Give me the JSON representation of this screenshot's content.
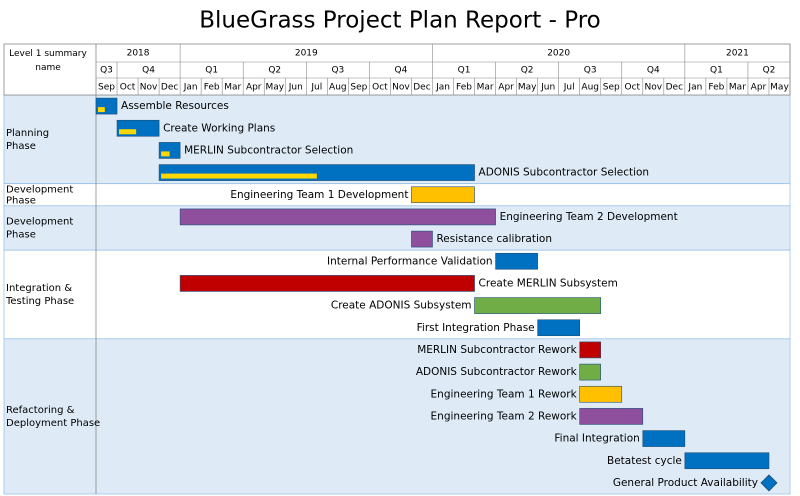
{
  "chart_data": {
    "type": "gantt",
    "title": "BlueGrass Project Plan Report - Pro",
    "row_header": "Level 1 summary name",
    "months": [
      {
        "name": "Sep",
        "quarter": "Q3",
        "year": "2018"
      },
      {
        "name": "Oct",
        "quarter": "Q4",
        "year": "2018"
      },
      {
        "name": "Nov",
        "quarter": "Q4",
        "year": "2018"
      },
      {
        "name": "Dec",
        "quarter": "Q4",
        "year": "2018"
      },
      {
        "name": "Jan",
        "quarter": "Q1",
        "year": "2019"
      },
      {
        "name": "Feb",
        "quarter": "Q1",
        "year": "2019"
      },
      {
        "name": "Mar",
        "quarter": "Q1",
        "year": "2019"
      },
      {
        "name": "Apr",
        "quarter": "Q2",
        "year": "2019"
      },
      {
        "name": "May",
        "quarter": "Q2",
        "year": "2019"
      },
      {
        "name": "Jun",
        "quarter": "Q2",
        "year": "2019"
      },
      {
        "name": "Jul",
        "quarter": "Q3",
        "year": "2019"
      },
      {
        "name": "Aug",
        "quarter": "Q3",
        "year": "2019"
      },
      {
        "name": "Sep",
        "quarter": "Q3",
        "year": "2019"
      },
      {
        "name": "Oct",
        "quarter": "Q4",
        "year": "2019"
      },
      {
        "name": "Nov",
        "quarter": "Q4",
        "year": "2019"
      },
      {
        "name": "Dec",
        "quarter": "Q4",
        "year": "2019"
      },
      {
        "name": "Jan",
        "quarter": "Q1",
        "year": "2020"
      },
      {
        "name": "Feb",
        "quarter": "Q1",
        "year": "2020"
      },
      {
        "name": "Mar",
        "quarter": "Q1",
        "year": "2020"
      },
      {
        "name": "Apr",
        "quarter": "Q2",
        "year": "2020"
      },
      {
        "name": "May",
        "quarter": "Q2",
        "year": "2020"
      },
      {
        "name": "Jun",
        "quarter": "Q2",
        "year": "2020"
      },
      {
        "name": "Jul",
        "quarter": "Q3",
        "year": "2020"
      },
      {
        "name": "Aug",
        "quarter": "Q3",
        "year": "2020"
      },
      {
        "name": "Sep",
        "quarter": "Q3",
        "year": "2020"
      },
      {
        "name": "Oct",
        "quarter": "Q4",
        "year": "2020"
      },
      {
        "name": "Nov",
        "quarter": "Q4",
        "year": "2020"
      },
      {
        "name": "Dec",
        "quarter": "Q4",
        "year": "2020"
      },
      {
        "name": "Jan",
        "quarter": "Q1",
        "year": "2021"
      },
      {
        "name": "Feb",
        "quarter": "Q1",
        "year": "2021"
      },
      {
        "name": "Mar",
        "quarter": "Q1",
        "year": "2021"
      },
      {
        "name": "Apr",
        "quarter": "Q2",
        "year": "2021"
      },
      {
        "name": "May",
        "quarter": "Q2",
        "year": "2021"
      }
    ],
    "phases": [
      {
        "name": "Planning Phase",
        "tasks": [
          {
            "name": "Assemble Resources",
            "start": "2018-09",
            "end": "2018-10",
            "color": "#0070c0",
            "progress": 40
          },
          {
            "name": "Create Working Plans",
            "start": "2018-10",
            "end": "2018-12",
            "color": "#0070c0",
            "progress": 45
          },
          {
            "name": "MERLIN Subcontractor Selection",
            "start": "2018-12",
            "end": "2019-01",
            "color": "#0070c0",
            "progress": 50
          },
          {
            "name": "ADONIS Subcontractor Selection",
            "start": "2018-12",
            "end": "2020-03",
            "color": "#0070c0",
            "progress": 50
          }
        ]
      },
      {
        "name": "Development Phase",
        "tasks": [
          {
            "name": "Engineering Team 1 Development",
            "start": "2019-12",
            "end": "2020-03",
            "color": "#ffc000"
          }
        ]
      },
      {
        "name": "Development Phase",
        "tasks": [
          {
            "name": "Engineering Team 2 Development",
            "start": "2019-01",
            "end": "2020-04",
            "color": "#8e4f9d"
          },
          {
            "name": "Resistance calibration",
            "start": "2019-12",
            "end": "2020-01",
            "color": "#8e4f9d"
          }
        ]
      },
      {
        "name": "Integration & Testing Phase",
        "tasks": [
          {
            "name": "Internal Performance Validation",
            "start": "2020-04",
            "end": "2020-06",
            "color": "#0070c0"
          },
          {
            "name": "Create MERLIN Subsystem",
            "start": "2019-01",
            "end": "2020-03",
            "color": "#c00000"
          },
          {
            "name": "Create ADONIS Subsystem",
            "start": "2020-03",
            "end": "2020-09",
            "color": "#70ad47"
          },
          {
            "name": "First Integration Phase",
            "start": "2020-06",
            "end": "2020-08",
            "color": "#0070c0"
          }
        ]
      },
      {
        "name": "Refactoring & Deployment Phase",
        "tasks": [
          {
            "name": "MERLIN Subcontractor Rework",
            "start": "2020-08",
            "end": "2020-09",
            "color": "#c00000"
          },
          {
            "name": "ADONIS Subcontractor Rework",
            "start": "2020-08",
            "end": "2020-09",
            "color": "#70ad47"
          },
          {
            "name": "Engineering Team 1 Rework",
            "start": "2020-08",
            "end": "2020-10",
            "color": "#ffc000"
          },
          {
            "name": "Engineering Team 2 Rework",
            "start": "2020-08",
            "end": "2020-11",
            "color": "#8e4f9d"
          },
          {
            "name": "Final Integration",
            "start": "2020-11",
            "end": "2021-01",
            "color": "#0070c0"
          },
          {
            "name": "Betatest cycle",
            "start": "2021-01",
            "end": "2021-05",
            "color": "#0070c0"
          },
          {
            "name": "General Product Availability",
            "start": "2021-05",
            "end": "2021-05",
            "color": "#0070c0",
            "milestone": true
          }
        ]
      }
    ]
  }
}
